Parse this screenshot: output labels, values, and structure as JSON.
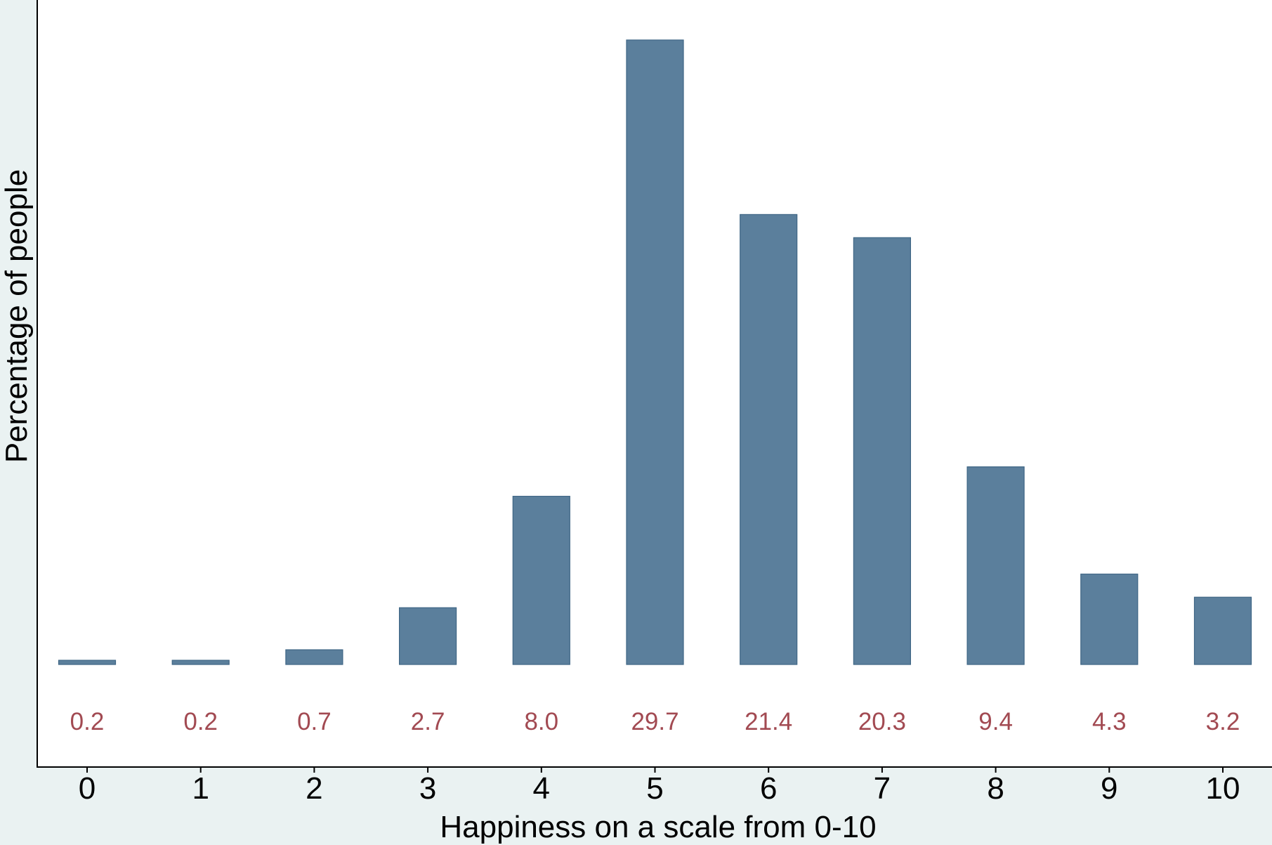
{
  "chart_data": {
    "type": "bar",
    "categories": [
      "0",
      "1",
      "2",
      "3",
      "4",
      "5",
      "6",
      "7",
      "8",
      "9",
      "10"
    ],
    "values": [
      0.2,
      0.2,
      0.7,
      2.7,
      8.0,
      29.7,
      21.4,
      20.3,
      9.4,
      4.3,
      3.2
    ],
    "value_labels": [
      "0.2",
      "0.2",
      "0.7",
      "2.7",
      "8.0",
      "29.7",
      "21.4",
      "20.3",
      "9.4",
      "4.3",
      "3.2"
    ],
    "xlabel": "Happiness on a scale from 0-10",
    "ylabel": "Percentage of people",
    "ylim": [
      0,
      30.6
    ],
    "grid": false,
    "legend": "none",
    "colors": {
      "bar_fill": "#5b7f9c",
      "bar_edge": "#3f6685",
      "value_label": "#a24a52",
      "background": "#eaf2f2",
      "plot_background": "#ffffff"
    }
  }
}
